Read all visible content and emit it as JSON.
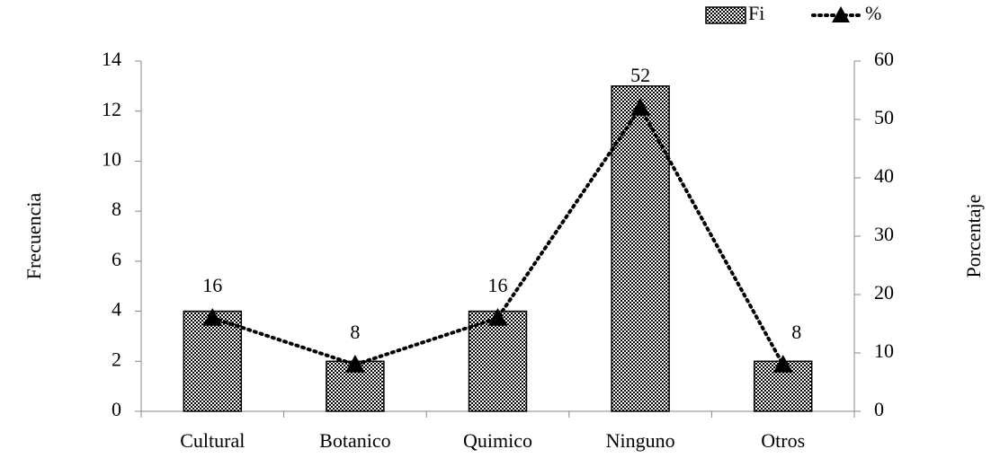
{
  "chart_data": {
    "type": "bar-line",
    "categories": [
      "Cultural",
      "Botanico",
      "Quimico",
      "Ninguno",
      "Otros"
    ],
    "series": [
      {
        "name": "Fi",
        "type": "bar",
        "color": "#000000",
        "values": [
          4,
          2,
          4,
          13,
          2
        ]
      },
      {
        "name": "%",
        "type": "line",
        "axis": "y2",
        "color": "#000000",
        "values": [
          16,
          8,
          16,
          52,
          8
        ]
      }
    ],
    "ylabel": "Frecuencia",
    "y2label": "Porcentaje",
    "ylim": [
      0,
      14
    ],
    "yticks": [
      0,
      2,
      4,
      6,
      8,
      10,
      12,
      14
    ],
    "y2lim": [
      0,
      60
    ],
    "y2ticks": [
      0,
      10,
      20,
      30,
      40,
      50,
      60
    ],
    "legend": "top",
    "grid": false
  }
}
